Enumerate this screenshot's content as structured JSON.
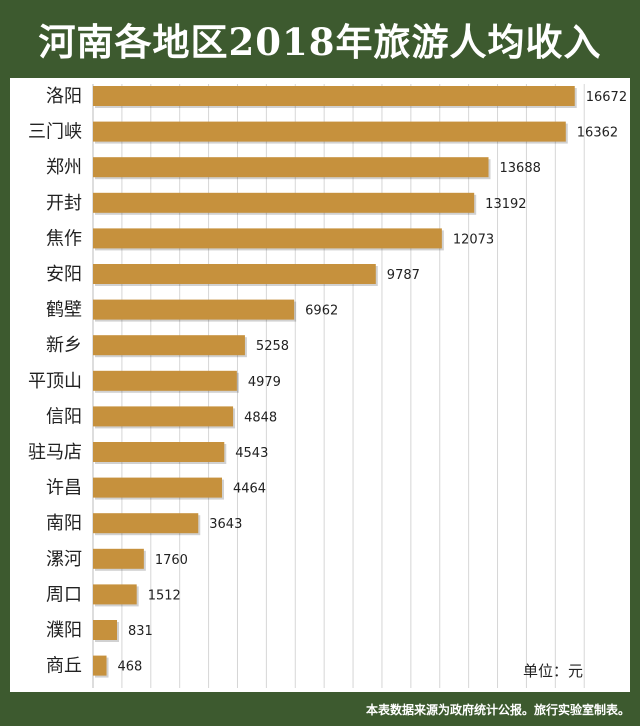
{
  "title": "河南各地区2018年旅游人均收入",
  "unit_label": "单位：元",
  "footer": "本表数据来源为政府统计公报。旅行实验室制表。",
  "colors": {
    "bar": "#c6913d",
    "background": "#3d5a2f",
    "panel": "#ffffff",
    "grid": "#d6d6d6"
  },
  "chart_data": {
    "type": "bar",
    "orientation": "horizontal",
    "categories": [
      "洛阳",
      "三门峡",
      "郑州",
      "开封",
      "焦作",
      "安阳",
      "鹤壁",
      "新乡",
      "平顶山",
      "信阳",
      "驻马店",
      "许昌",
      "南阳",
      "漯河",
      "周口",
      "濮阳",
      "商丘"
    ],
    "values": [
      16672,
      16362,
      13688,
      13192,
      12073,
      9787,
      6962,
      5258,
      4979,
      4848,
      4543,
      4464,
      3643,
      1760,
      1512,
      831,
      468
    ],
    "xlim": [
      0,
      17200
    ],
    "grid": true,
    "data_labels": true
  }
}
